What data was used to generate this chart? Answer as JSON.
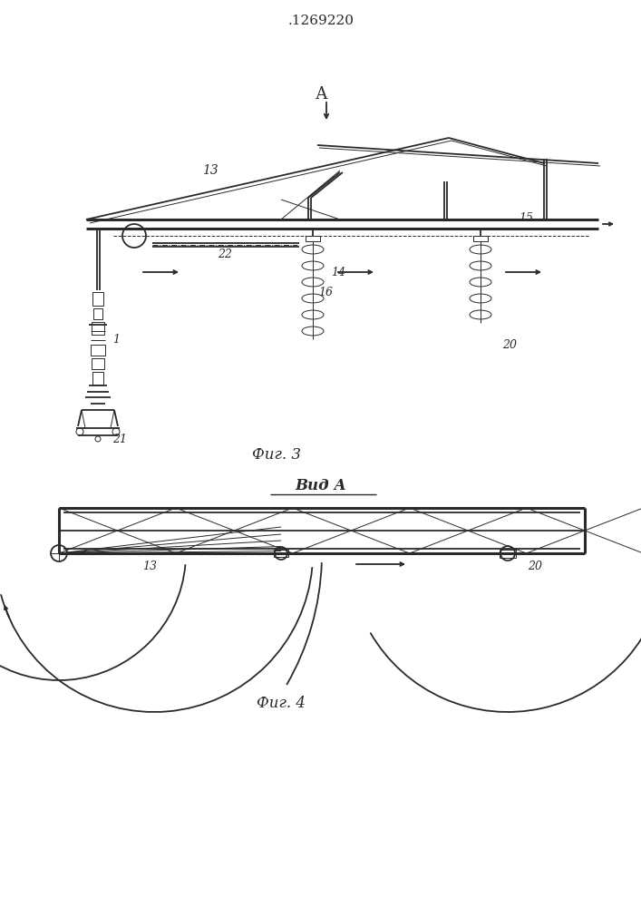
{
  "title": ".1269220",
  "fig3_label": "Фиг. 3",
  "fig4_label": "Фиг. 4",
  "view_label": "Вид А",
  "bg_color": "#ffffff",
  "line_color": "#2a2a2a",
  "lw_main": 1.3,
  "lw_thin": 0.7,
  "lw_thick": 2.2
}
